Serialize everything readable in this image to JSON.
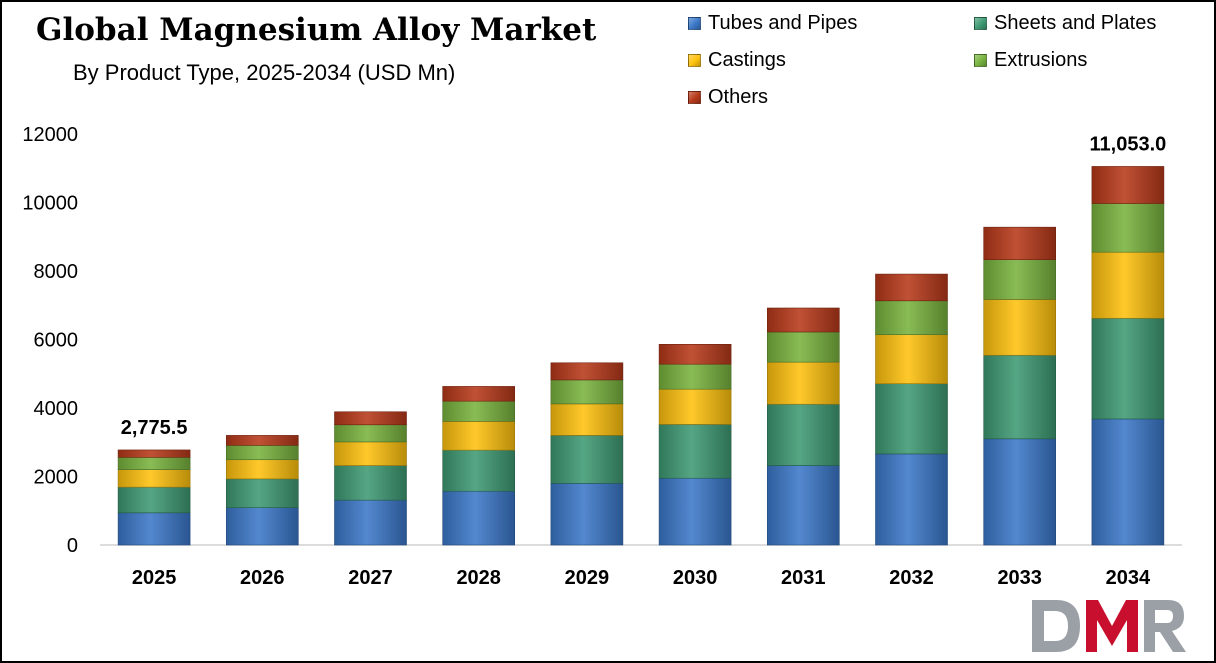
{
  "chart_data": {
    "type": "bar",
    "stacked": true,
    "title": "Global Magnesium Alloy Market",
    "subtitle": "By Product Type, 2025-2034 (USD Mn)",
    "categories": [
      "2025",
      "2026",
      "2027",
      "2028",
      "2029",
      "2030",
      "2031",
      "2032",
      "2033",
      "2034"
    ],
    "series": [
      {
        "name": "Tubes and Pipes",
        "color": "#3b78c9",
        "values": [
          940,
          1090,
          1310,
          1570,
          1800,
          1950,
          2320,
          2660,
          3100,
          3680
        ]
      },
      {
        "name": "Sheets and Plates",
        "color": "#3e9a73",
        "values": [
          750,
          840,
          1010,
          1200,
          1400,
          1570,
          1790,
          2050,
          2440,
          2940
        ]
      },
      {
        "name": "Castings",
        "color": "#ffc20e",
        "values": [
          510,
          560,
          690,
          840,
          920,
          1030,
          1230,
          1430,
          1630,
          1930
        ]
      },
      {
        "name": "Extrusions",
        "color": "#79b33e",
        "values": [
          360,
          420,
          500,
          590,
          700,
          730,
          880,
          990,
          1160,
          1420
        ]
      },
      {
        "name": "Others",
        "color": "#b7391a",
        "values": [
          215.5,
          290,
          380,
          430,
          500,
          580,
          700,
          780,
          950,
          1083
        ]
      }
    ],
    "data_labels": [
      {
        "category": "2025",
        "text": "2,775.5"
      },
      {
        "category": "2034",
        "text": "11,053.0"
      }
    ],
    "ylim": [
      0,
      12000
    ],
    "yticks": [
      0,
      2000,
      4000,
      6000,
      8000,
      10000,
      12000
    ],
    "xlabel": "",
    "ylabel": "",
    "grid": false,
    "legend_position": "top-right"
  },
  "logo": {
    "text": "DMR",
    "colors": [
      "#9aa0a6",
      "#c8102e",
      "#9aa0a6"
    ]
  }
}
